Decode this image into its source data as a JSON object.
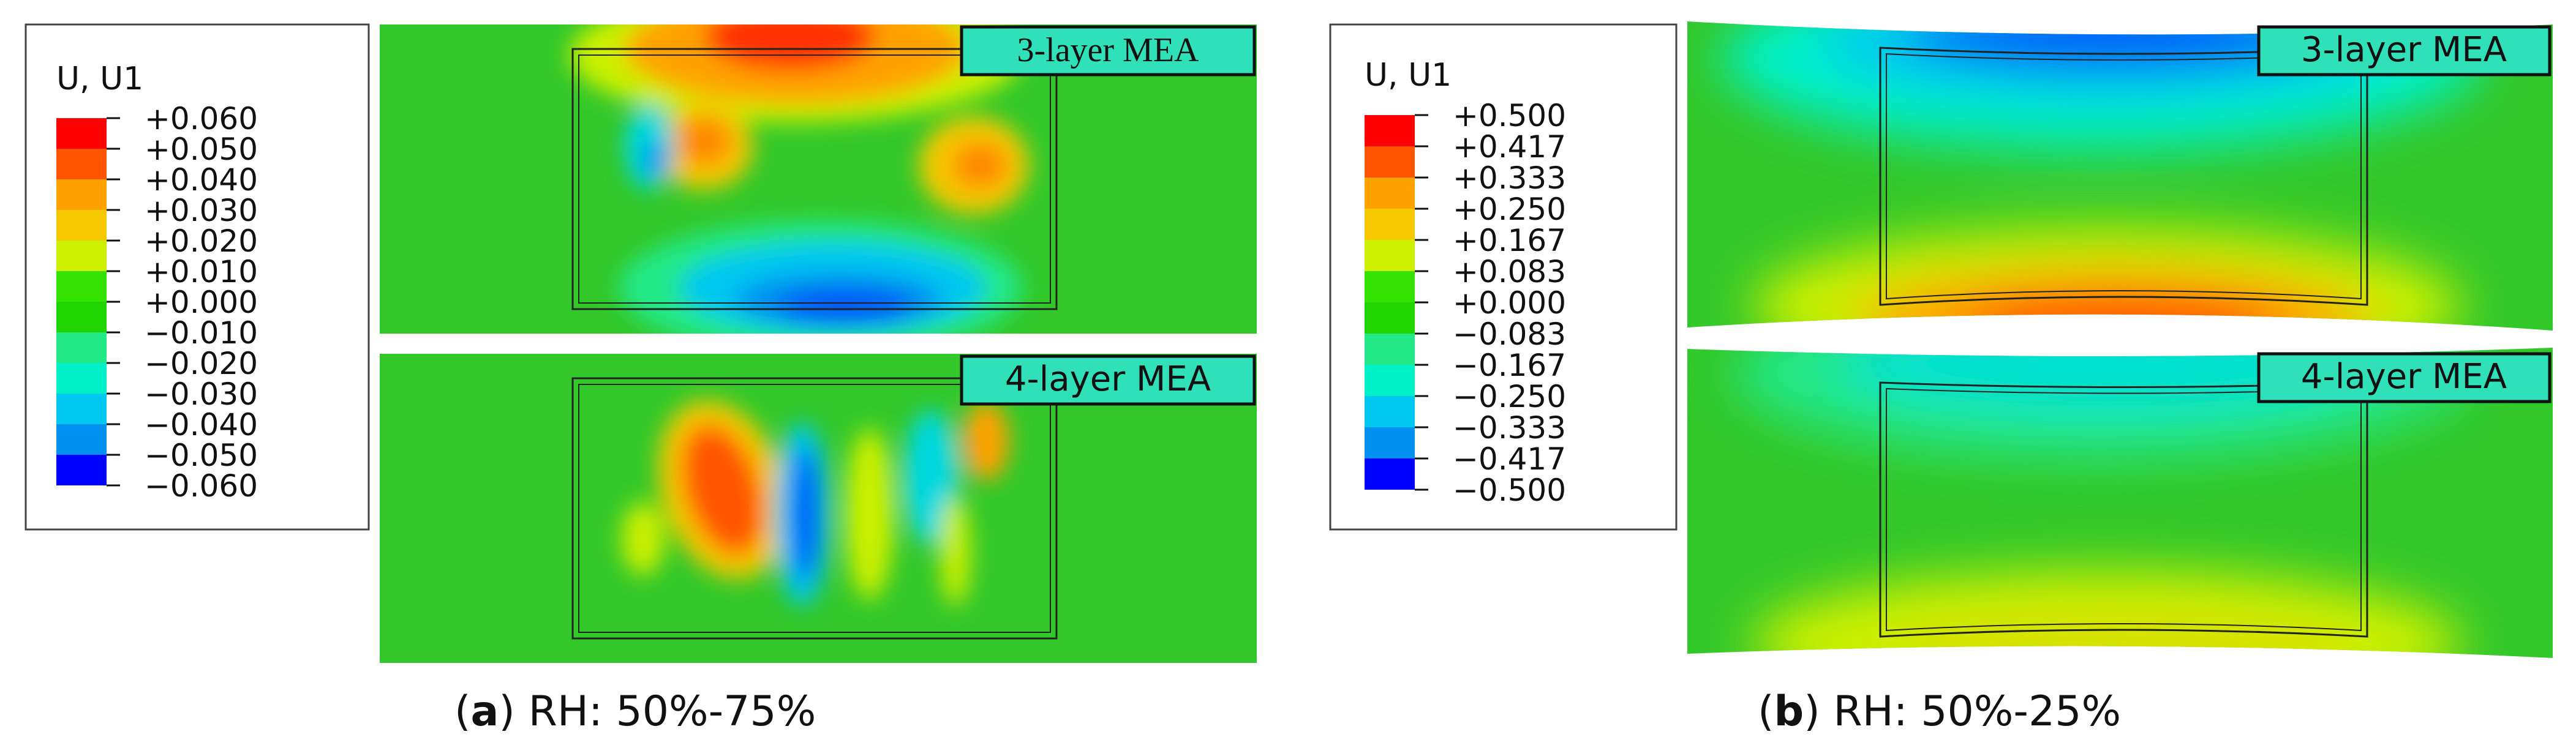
{
  "panels": [
    {
      "letter": "a",
      "caption": "RH: 50%-75%",
      "legend": {
        "title": "U, U1",
        "labels": [
          "+0.060",
          "+0.050",
          "+0.040",
          "+0.030",
          "+0.020",
          "+0.010",
          "+0.000",
          "−0.010",
          "−0.020",
          "−0.030",
          "−0.040",
          "−0.050",
          "−0.060"
        ]
      },
      "contours": [
        {
          "label": "3-layer MEA"
        },
        {
          "label": "4-layer MEA"
        }
      ]
    },
    {
      "letter": "b",
      "caption": "RH: 50%-25%",
      "legend": {
        "title": "U, U1",
        "labels": [
          "+0.500",
          "+0.417",
          "+0.333",
          "+0.250",
          "+0.167",
          "+0.083",
          "+0.000",
          "−0.083",
          "−0.167",
          "−0.250",
          "−0.333",
          "−0.417",
          "−0.500"
        ]
      },
      "contours": [
        {
          "label": "3-layer MEA"
        },
        {
          "label": "4-layer MEA"
        }
      ]
    }
  ],
  "colors": {
    "scale": [
      "#ff0000",
      "#ff5500",
      "#ffa200",
      "#f5c800",
      "#ccf000",
      "#33e200",
      "#20d400",
      "#22e888",
      "#00f0c8",
      "#00c8f0",
      "#0090f0",
      "#0050f8",
      "#0000ff"
    ],
    "background_green": "#33c82a",
    "label_box": "#2fe0b8"
  }
}
